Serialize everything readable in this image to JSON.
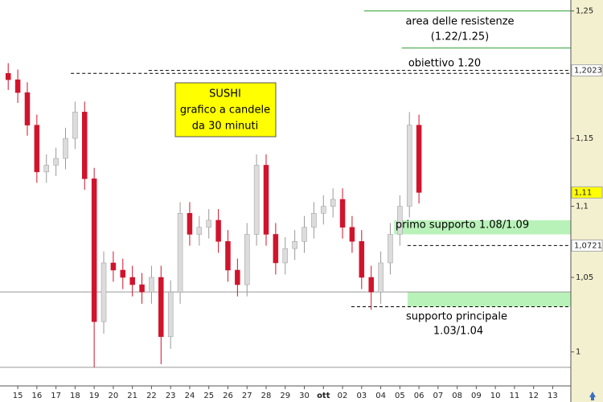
{
  "chart_data": {
    "type": "candlestick",
    "box_lines": [
      "SUSHI",
      "grafico a candele",
      "da 30 minuti"
    ],
    "annotations": [
      "area delle resistenze",
      "(1.22/1.25)",
      "obiettivo 1.20",
      "primo supporto 1.08/1.09",
      "supporto principale",
      "1.03/1.04"
    ],
    "log_scale": true,
    "xlim": [
      -0.93,
      28.95
    ],
    "ylim": [
      0.978,
      1.259
    ],
    "xticks": [
      {
        "value": 0,
        "label": "15"
      },
      {
        "value": 1,
        "label": "16"
      },
      {
        "value": 2,
        "label": "17"
      },
      {
        "value": 3,
        "label": "18"
      },
      {
        "value": 4,
        "label": "19"
      },
      {
        "value": 5,
        "label": "20"
      },
      {
        "value": 6,
        "label": "21"
      },
      {
        "value": 7,
        "label": "22"
      },
      {
        "value": 8,
        "label": "23"
      },
      {
        "value": 9,
        "label": "24"
      },
      {
        "value": 10,
        "label": "25"
      },
      {
        "value": 11,
        "label": "26"
      },
      {
        "value": 12,
        "label": "27"
      },
      {
        "value": 13,
        "label": "28"
      },
      {
        "value": 14,
        "label": "29"
      },
      {
        "value": 15,
        "label": "30"
      },
      {
        "value": 16,
        "label": "ott"
      },
      {
        "value": 17,
        "label": "02"
      },
      {
        "value": 18,
        "label": "03"
      },
      {
        "value": 19,
        "label": "04"
      },
      {
        "value": 20,
        "label": "05"
      },
      {
        "value": 21,
        "label": "06"
      },
      {
        "value": 22,
        "label": "07"
      },
      {
        "value": 23,
        "label": "08"
      },
      {
        "value": 24,
        "label": "09"
      },
      {
        "value": 25,
        "label": "10"
      },
      {
        "value": 26,
        "label": "11"
      },
      {
        "value": 27,
        "label": "12"
      },
      {
        "value": 28,
        "label": "13"
      }
    ],
    "yticks": [
      1,
      {
        "value": 1.05,
        "label": "1,05"
      },
      {
        "value": 1.1,
        "label": "1,1"
      },
      {
        "value": 1.15,
        "label": "1,15"
      },
      {
        "value": 1.25,
        "label": "1,25"
      }
    ],
    "price_labels": [
      {
        "value": 1.2023,
        "label": "1,2023",
        "color": "#ffffff"
      },
      {
        "value": 1.11,
        "label": "1,11",
        "color": "#ffff00"
      },
      {
        "value": 1.0721,
        "label": "1,0721",
        "color": "#ffffff"
      }
    ],
    "up_color": "#dcdcdc",
    "down_color": "#d0142c",
    "candles": {
      "x": [
        -0.5,
        0,
        0.5,
        1,
        1.5,
        2,
        2.5,
        3,
        3.5,
        4,
        4.5,
        5,
        5.5,
        6,
        6.5,
        7,
        7.5,
        8,
        8.5,
        9,
        9.5,
        10,
        10.5,
        11,
        11.5,
        12,
        12.5,
        13,
        13.5,
        14,
        14.5,
        15,
        15.5,
        16,
        16.5,
        17,
        17.5,
        18,
        18.5,
        19,
        19.5,
        20,
        20.5,
        21
      ],
      "open": [
        1.2,
        1.195,
        1.185,
        1.16,
        1.125,
        1.13,
        1.135,
        1.15,
        1.17,
        1.12,
        1.02,
        1.06,
        1.055,
        1.05,
        1.045,
        1.04,
        1.05,
        1.01,
        1.04,
        1.095,
        1.08,
        1.085,
        1.09,
        1.075,
        1.055,
        1.045,
        1.08,
        1.13,
        1.08,
        1.06,
        1.07,
        1.075,
        1.085,
        1.095,
        1.1,
        1.105,
        1.085,
        1.075,
        1.05,
        1.04,
        1.06,
        1.08,
        1.1,
        1.16
      ],
      "high": [
        1.208,
        1.203,
        1.193,
        1.168,
        1.138,
        1.143,
        1.158,
        1.178,
        1.178,
        1.128,
        1.068,
        1.068,
        1.063,
        1.058,
        1.053,
        1.058,
        1.058,
        1.048,
        1.103,
        1.103,
        1.093,
        1.098,
        1.098,
        1.083,
        1.063,
        1.088,
        1.138,
        1.138,
        1.088,
        1.078,
        1.083,
        1.093,
        1.103,
        1.108,
        1.113,
        1.113,
        1.093,
        1.083,
        1.058,
        1.068,
        1.088,
        1.108,
        1.17,
        1.168
      ],
      "low": [
        1.187,
        1.177,
        1.152,
        1.117,
        1.117,
        1.122,
        1.127,
        1.142,
        1.112,
        0.99,
        1.012,
        1.047,
        1.042,
        1.037,
        1.032,
        1.032,
        0.992,
        1.002,
        1.032,
        1.072,
        1.072,
        1.077,
        1.067,
        1.047,
        1.037,
        1.037,
        1.072,
        1.072,
        1.052,
        1.052,
        1.062,
        1.067,
        1.077,
        1.087,
        1.092,
        1.077,
        1.067,
        1.042,
        1.028,
        1.032,
        1.052,
        1.072,
        1.092,
        1.102
      ],
      "close": [
        1.195,
        1.185,
        1.16,
        1.125,
        1.13,
        1.135,
        1.15,
        1.17,
        1.12,
        1.02,
        1.06,
        1.055,
        1.05,
        1.045,
        1.04,
        1.05,
        1.01,
        1.04,
        1.095,
        1.08,
        1.085,
        1.09,
        1.075,
        1.055,
        1.045,
        1.08,
        1.13,
        1.08,
        1.06,
        1.07,
        1.075,
        1.085,
        1.095,
        1.1,
        1.105,
        1.085,
        1.075,
        1.05,
        1.04,
        1.06,
        1.08,
        1.1,
        1.16,
        1.11
      ]
    },
    "levels": [
      {
        "value": 1.25,
        "from": 18.13,
        "color": "#2e9e2e",
        "dashed": false
      },
      {
        "value": 1.22,
        "from": 20.1,
        "color": "#2e9e2e",
        "dashed": false
      },
      {
        "value": 1.2,
        "from": 2.78,
        "color": "#000000",
        "dashed": true
      },
      {
        "value": 1.2023,
        "from": 6.85,
        "color": "#000000",
        "dashed": true
      },
      {
        "value": 1.0721,
        "from": 20.4,
        "color": "#000000",
        "dashed": true
      },
      {
        "value": 1.03,
        "from": 17.46,
        "color": "#000000",
        "dashed": true
      },
      {
        "value": 1.04,
        "from": -0.93,
        "color": "#999999",
        "dashed": false
      },
      {
        "value": 0.99,
        "from": -0.93,
        "color": "#999999",
        "dashed": false
      }
    ],
    "zones": [
      {
        "low": 1.08,
        "high": 1.09,
        "from": 19.7,
        "color": "#b9f2b9"
      },
      {
        "low": 1.03,
        "high": 1.04,
        "from": 20.4,
        "color": "#b9f2b9"
      }
    ]
  }
}
